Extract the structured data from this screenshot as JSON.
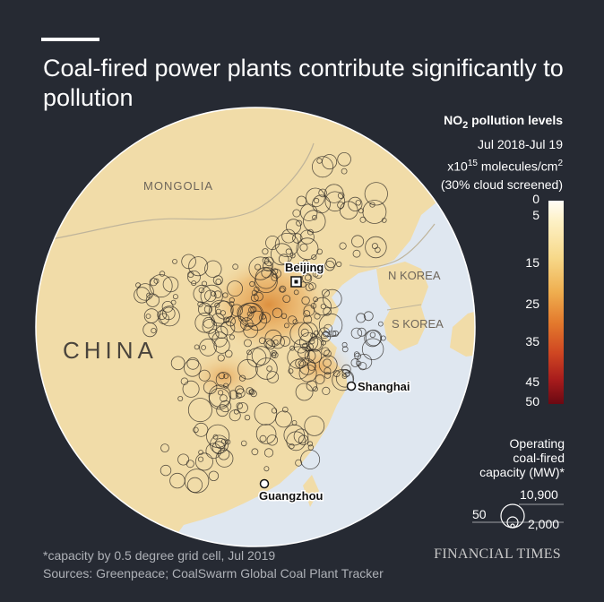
{
  "title": "Coal-fired power plants contribute significantly to pollution",
  "map": {
    "labels": {
      "mongolia": "MONGOLIA",
      "china": "CHINA",
      "n_korea": "N KOREA",
      "s_korea": "S KOREA"
    },
    "cities": {
      "beijing": "Beijing",
      "shanghai": "Shanghai",
      "guangzhou": "Guangzhou"
    },
    "colors": {
      "land": "#f1dca8",
      "sea": "#dfe7f0",
      "high_pollution": "#d9832d"
    }
  },
  "legend": {
    "no2_title_prefix": "NO",
    "no2_title_sub": "2",
    "no2_title_suffix": " pollution levels",
    "period": "Jul 2018-Jul 19",
    "unit_prefix": "x10",
    "unit_exp": "15",
    "unit_mid": " molecules/cm",
    "unit_exp2": "2",
    "cloud_note": "(30% cloud screened)",
    "ticks": [
      "0",
      "5",
      "15",
      "25",
      "35",
      "45",
      "50"
    ],
    "capacity_title_1": "Operating",
    "capacity_title_2": "coal-fired",
    "capacity_title_3": "capacity (MW)*",
    "capacity_values": {
      "large": "10,900",
      "mid": "2,000",
      "small": "50"
    }
  },
  "footnote": "*capacity by 0.5 degree grid cell, Jul 2019",
  "sources": "Sources: Greenpeace; CoalSwarm Global Coal Plant Tracker",
  "publisher": "FINANCIAL TIMES"
}
